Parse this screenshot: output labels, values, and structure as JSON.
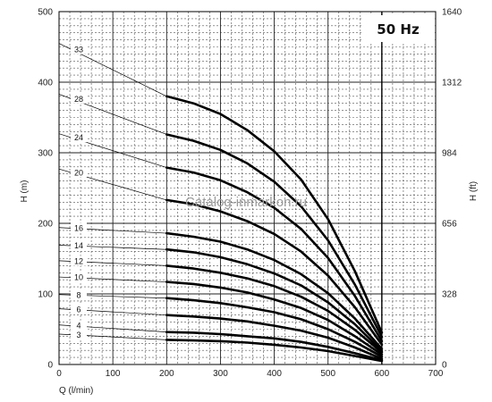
{
  "chart_data": {
    "type": "line",
    "frequency_label": "50 Hz",
    "watermark": "Catalog-inmarkon.ru",
    "xlabel": "Q (l/min)",
    "ylabel": "H (m)",
    "ylabel_right": "H (ft)",
    "xlim": [
      0,
      700
    ],
    "ylim": [
      0,
      500
    ],
    "y2lim": [
      0,
      1640
    ],
    "x_ticks": [
      "0",
      "100",
      "200",
      "300",
      "400",
      "500",
      "600",
      "700"
    ],
    "y_ticks": [
      "0",
      "100",
      "200",
      "300",
      "400",
      "500"
    ],
    "y2_ticks": [
      "0",
      "328",
      "656",
      "984",
      "1312",
      "1640"
    ],
    "grid": true,
    "curve_x": [
      200,
      250,
      300,
      350,
      400,
      450,
      500,
      550,
      600
    ],
    "series": [
      {
        "name": "3",
        "shutoff_head": 43,
        "values": [
          35,
          34,
          33,
          31,
          28,
          24,
          19,
          12,
          5
        ]
      },
      {
        "name": "4",
        "shutoff_head": 56,
        "values": [
          46,
          45,
          43,
          40,
          37,
          32,
          25,
          16,
          6
        ]
      },
      {
        "name": "6",
        "shutoff_head": 79,
        "values": [
          70,
          68,
          65,
          61,
          55,
          48,
          38,
          24,
          8
        ]
      },
      {
        "name": "8",
        "shutoff_head": 99,
        "values": [
          94,
          91,
          87,
          81,
          74,
          64,
          50,
          32,
          11
        ]
      },
      {
        "name": "10",
        "shutoff_head": 124,
        "values": [
          117,
          114,
          109,
          102,
          92,
          80,
          63,
          40,
          14
        ]
      },
      {
        "name": "12",
        "shutoff_head": 147,
        "values": [
          140,
          136,
          130,
          122,
          111,
          96,
          76,
          49,
          17
        ]
      },
      {
        "name": "14",
        "shutoff_head": 169,
        "values": [
          163,
          159,
          152,
          142,
          129,
          112,
          88,
          57,
          19
        ]
      },
      {
        "name": "16",
        "shutoff_head": 194,
        "values": [
          186,
          181,
          174,
          163,
          148,
          128,
          101,
          65,
          22
        ]
      },
      {
        "name": "20",
        "shutoff_head": 277,
        "values": [
          233,
          227,
          217,
          203,
          185,
          160,
          126,
          81,
          28
        ]
      },
      {
        "name": "24",
        "shutoff_head": 327,
        "values": [
          279,
          272,
          261,
          244,
          222,
          192,
          151,
          97,
          33
        ]
      },
      {
        "name": "28",
        "shutoff_head": 383,
        "values": [
          326,
          317,
          304,
          285,
          259,
          224,
          176,
          113,
          39
        ]
      },
      {
        "name": "33",
        "shutoff_head": 455,
        "values": [
          380,
          370,
          355,
          332,
          302,
          262,
          206,
          132,
          45
        ]
      }
    ]
  }
}
